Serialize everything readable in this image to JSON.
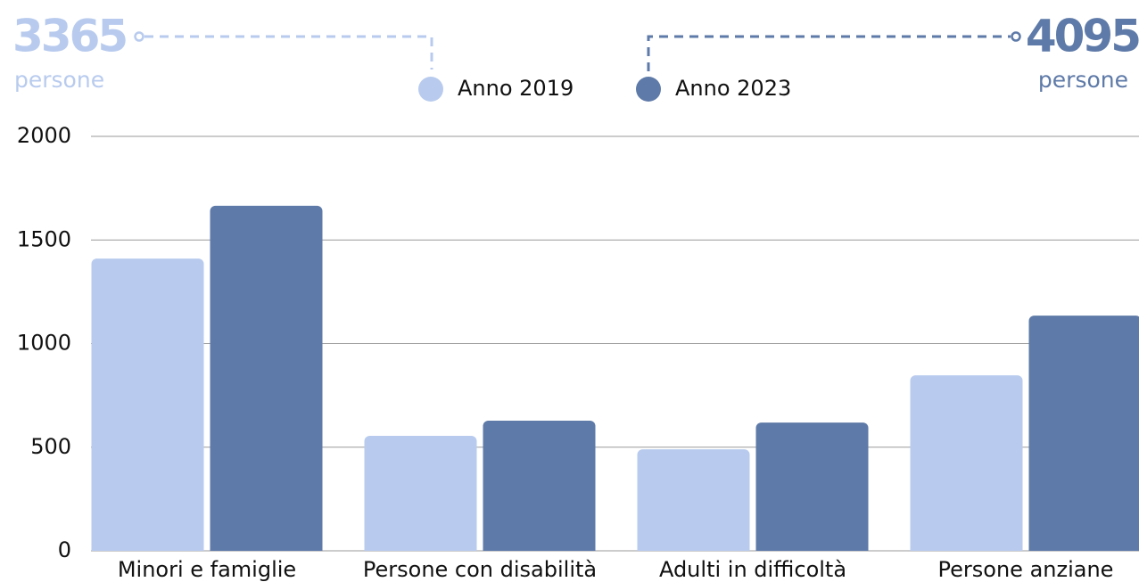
{
  "chart_data": {
    "type": "bar",
    "categories": [
      "Minori e famiglie",
      "Persone con disabilità",
      "Adulti in difficoltà",
      "Persone anziane"
    ],
    "series": [
      {
        "name": "Anno 2019",
        "color": "#b8cbee",
        "values": [
          1410,
          555,
          490,
          847
        ],
        "total": 3365,
        "total_unit": "persone"
      },
      {
        "name": "Anno 2023",
        "color": "#5e7aa8",
        "values": [
          1665,
          628,
          619,
          1135
        ],
        "total": 4095,
        "total_unit": "persone"
      }
    ],
    "ylim": [
      0,
      2000
    ],
    "yticks": [
      0,
      500,
      1000,
      1500,
      2000
    ],
    "grid": true
  }
}
